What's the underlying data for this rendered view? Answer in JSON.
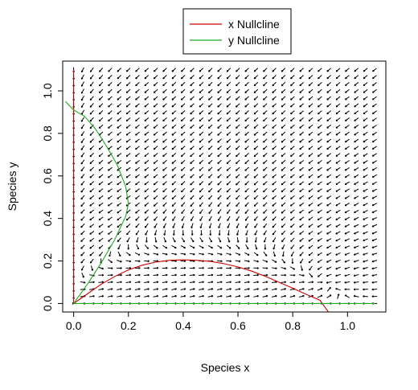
{
  "chart_data": {
    "type": "phase-plane",
    "title": "",
    "xlabel": "Species x",
    "ylabel": "Species y",
    "xlim": [
      -0.04,
      1.14
    ],
    "ylim": [
      -0.04,
      1.14
    ],
    "x_ticks": [
      0.0,
      0.2,
      0.4,
      0.6,
      0.8,
      1.0
    ],
    "x_tick_labels": [
      "0.0",
      "0.2",
      "0.4",
      "0.6",
      "0.8",
      "1.0"
    ],
    "y_ticks": [
      0.0,
      0.2,
      0.4,
      0.6,
      0.8,
      1.0
    ],
    "y_tick_labels": [
      "0.0",
      "0.2",
      "0.4",
      "0.6",
      "0.8",
      "1.0"
    ],
    "grid": false,
    "legend_position": "top-center",
    "legend": [
      {
        "label": "x Nullcline",
        "color": "#cc0000"
      },
      {
        "label": "y Nullcline",
        "color": "#22aa22"
      }
    ],
    "series": [
      {
        "name": "x Nullcline",
        "color": "#cc0000",
        "x": [
          0.0,
          0.0,
          0.0,
          0.0,
          0.0,
          0.0,
          0.0,
          0.0,
          0.05,
          0.1,
          0.15,
          0.2,
          0.25,
          0.3,
          0.35,
          0.4,
          0.45,
          0.5,
          0.55,
          0.6,
          0.65,
          0.7,
          0.75,
          0.8,
          0.85,
          0.9,
          0.93
        ],
        "y": [
          1.1,
          0.9,
          0.7,
          0.5,
          0.3,
          0.1,
          0.0,
          0.0,
          0.045,
          0.09,
          0.127,
          0.158,
          0.18,
          0.195,
          0.203,
          0.205,
          0.203,
          0.198,
          0.187,
          0.172,
          0.152,
          0.128,
          0.1,
          0.072,
          0.043,
          0.015,
          -0.04
        ]
      },
      {
        "name": "y Nullcline",
        "color": "#22aa22",
        "x": [
          0.0,
          0.05,
          0.1,
          0.15,
          0.19,
          0.2,
          0.19,
          0.16,
          0.12,
          0.08,
          0.04,
          0.0,
          -0.03,
          0.0,
          0.3,
          0.6,
          0.9,
          1.1
        ],
        "y": [
          0.0,
          0.09,
          0.19,
          0.3,
          0.41,
          0.47,
          0.55,
          0.65,
          0.74,
          0.82,
          0.88,
          0.91,
          0.95,
          0.0,
          0.0,
          0.0,
          0.0,
          0.0
        ]
      }
    ],
    "vector_field": {
      "x_range": [
        0.0,
        1.1
      ],
      "y_range": [
        0.0,
        1.1
      ],
      "grid_step": 0.0333,
      "arrow_color": "#000000",
      "model": "dx = x(1 - x - y/(x+y)... ) approximate predator-prey field"
    }
  }
}
